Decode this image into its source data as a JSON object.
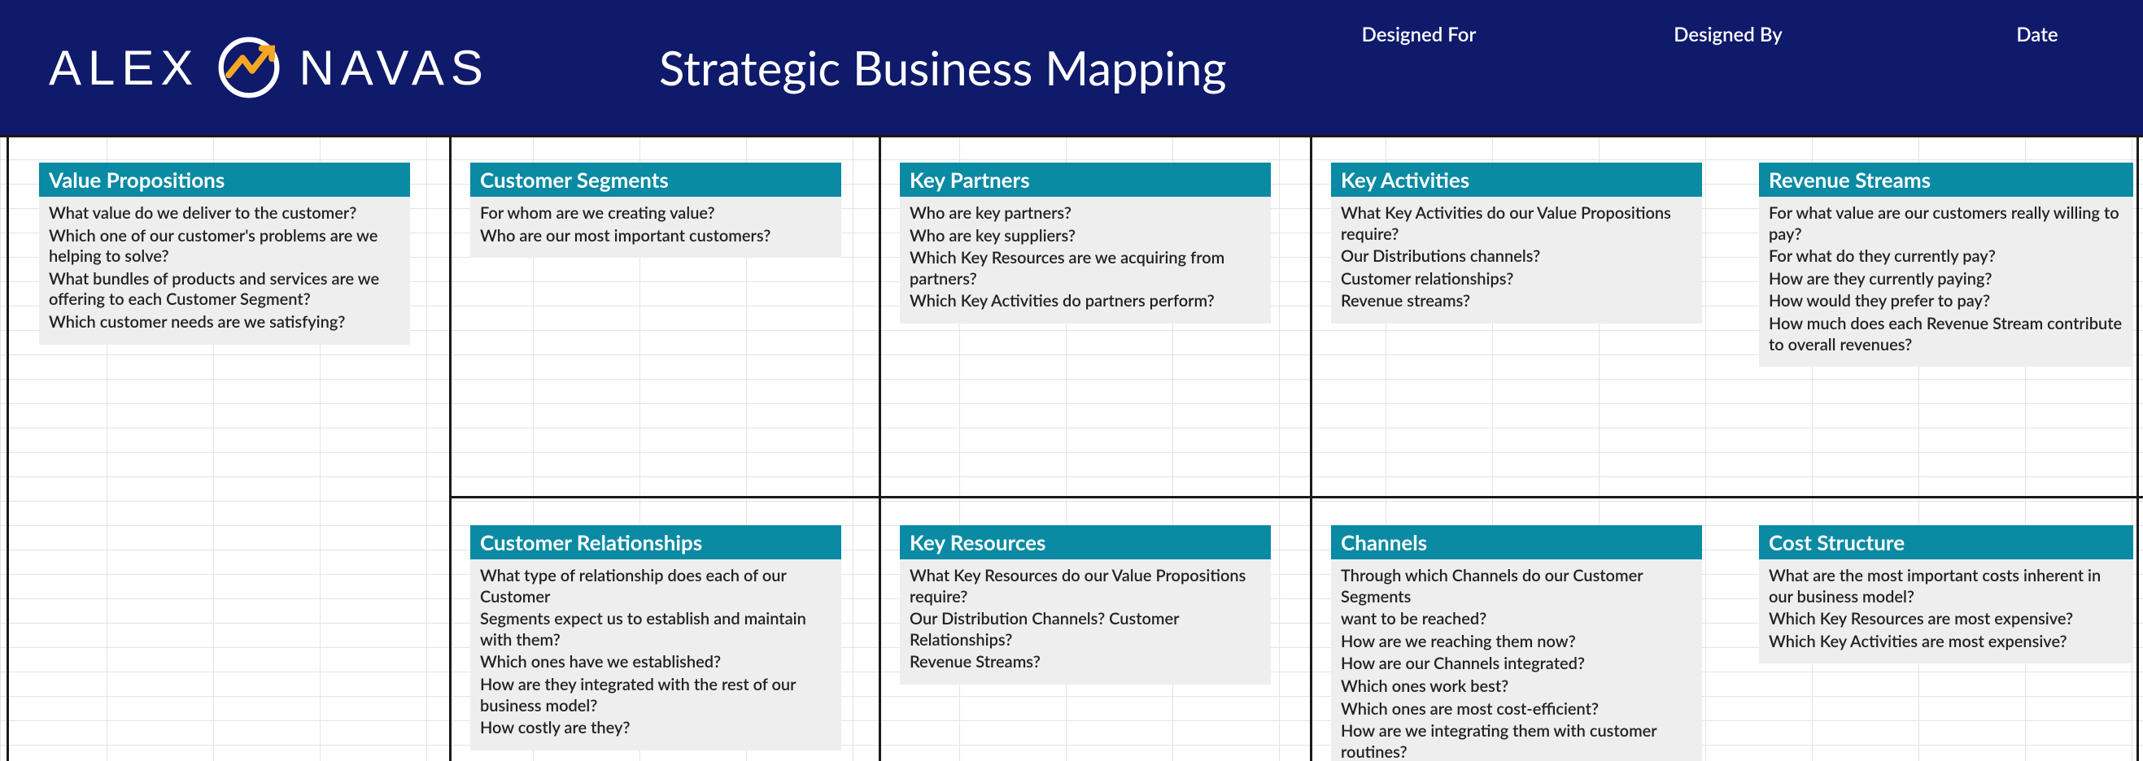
{
  "header": {
    "logo_first": "ALEX",
    "logo_last": "NAVAS",
    "title": "Strategic Business Mapping",
    "meta": {
      "designed_for": "Designed For",
      "designed_by": "Designed By",
      "date": "Date"
    },
    "bg_color": "#0f1a6b"
  },
  "section_heading_color": "#0a8aa3",
  "section_body_color": "#eeeeee",
  "blocks": {
    "value_propositions": {
      "title": "Value Propositions",
      "questions": [
        "What value do we deliver to the customer?",
        "Which one of our customer's problems are we helping to solve?",
        "What bundles of products and services are we offering to each Customer Segment?",
        "Which customer needs are we satisfying?"
      ]
    },
    "customer_segments": {
      "title": "Customer Segments",
      "questions": [
        "For whom are we creating value?",
        "Who are our most important customers?"
      ]
    },
    "key_partners": {
      "title": "Key Partners",
      "questions": [
        "Who are key partners?",
        "Who are key suppliers?",
        "Which Key Resources are we acquiring from partners?",
        "Which Key Activities do partners perform?"
      ]
    },
    "key_activities": {
      "title": "Key Activities",
      "questions": [
        "What Key Activities do our Value Propositions require?",
        "Our Distributions channels?",
        "Customer relationships?",
        "Revenue streams?"
      ]
    },
    "revenue_streams": {
      "title": "Revenue Streams",
      "questions": [
        "For what value are our customers really willing to pay?",
        "For what do they currently pay?",
        "How are they currently paying?",
        "How would they prefer to pay?",
        "How much does each Revenue Stream contribute to overall revenues?"
      ]
    },
    "customer_relationships": {
      "title": "Customer Relationships",
      "questions": [
        "What type of relationship does each of our Customer",
        "Segments expect us to establish and maintain with them?",
        "Which ones have we established?",
        "How are they integrated with the rest of our business model?",
        "How costly are they?"
      ]
    },
    "key_resources": {
      "title": "Key Resources",
      "questions": [
        "What Key Resources do our Value Propositions require?",
        "Our Distribution Channels? Customer Relationships?",
        "Revenue Streams?"
      ]
    },
    "channels": {
      "title": "Channels",
      "questions": [
        "Through which Channels do our Customer Segments",
        "want to be reached?",
        "How are we reaching them now?",
        "How are our Channels integrated?",
        "Which ones work best?",
        "Which ones are most cost-efficient?",
        "How are we integrating them with customer routines?"
      ]
    },
    "cost_structure": {
      "title": "Cost Structure",
      "questions": [
        "What are the most important costs inherent in our business model?",
        "Which Key Resources are most expensive?",
        "Which Key Activities are most expensive?"
      ]
    }
  },
  "lines": {
    "v": [
      8,
      552,
      1080,
      1610,
      2626
    ],
    "h": [
      0,
      444
    ]
  }
}
